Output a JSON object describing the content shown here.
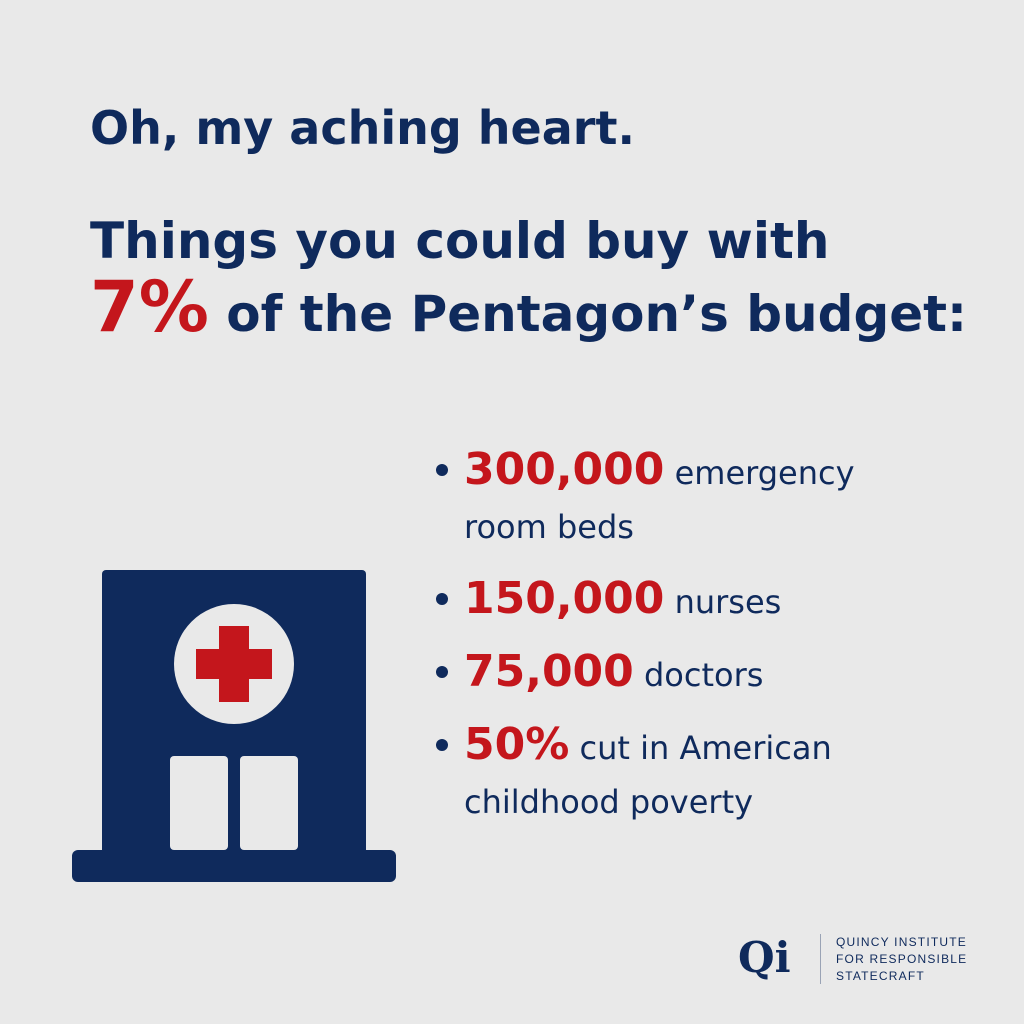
{
  "headline": "Oh, my aching heart.",
  "subhead": {
    "line1": "Things you could buy with",
    "percent": "7%",
    "line2_rest": " of the Pentagon’s budget:"
  },
  "bullets": [
    {
      "number": "300,000",
      "text": " emergency",
      "continuation": "room beds"
    },
    {
      "number": "150,000",
      "text": " nurses"
    },
    {
      "number": "75,000",
      "text": " doctors"
    },
    {
      "number": "50%",
      "text": " cut in American",
      "continuation": "childhood poverty"
    }
  ],
  "logo": {
    "mark": "Qi",
    "line1": "QUINCY INSTITUTE",
    "line2": "FOR RESPONSIBLE",
    "line3": "STATECRAFT"
  },
  "colors": {
    "background": "#e9e9e9",
    "navy": "#0f2a5c",
    "red": "#c4161c"
  },
  "icons": {
    "illustration": "hospital-building-icon"
  }
}
